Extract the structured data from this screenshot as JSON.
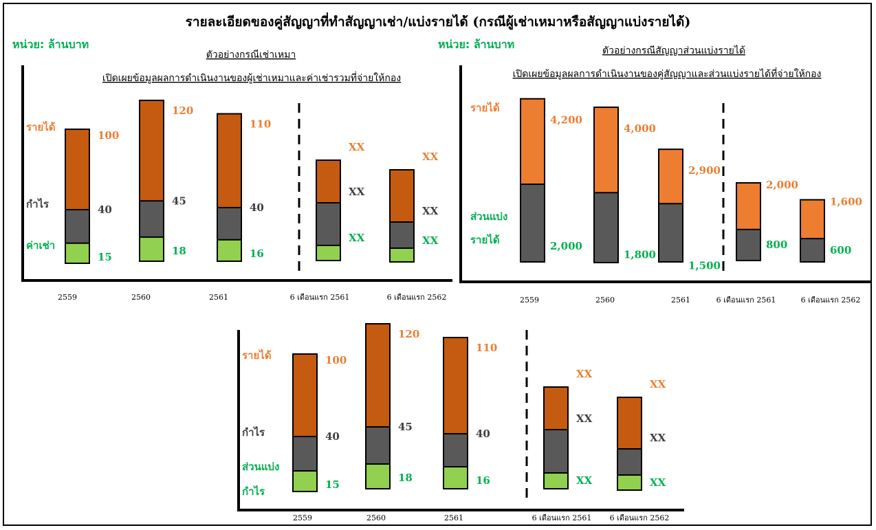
{
  "page": {
    "title": "รายละเอียดของคู่สัญญาที่ทำสัญญาเช่า/แบ่งรายได้ (กรณีผู้เช่าเหมาหรือสัญญาแบ่งรายได้)"
  },
  "colors": {
    "orange_light": "#ED7D31",
    "orange_dark": "#C55A11",
    "gray": "#595959",
    "green_bar": "#92D050",
    "green_text": "#00B050",
    "axis": "#000000"
  },
  "chart_data": [
    {
      "type": "bar",
      "subtype": "stacked-overlap",
      "unit_label": "หน่วย: ล้านบาท",
      "subtitle_1": "ตัวอย่างกรณีเช่าเหมา",
      "subtitle_2": "เปิดเผยข้อมูลผลการดำเนินงานของผู้เช่าเหมาและค่าเช่ารวมที่จ่ายให้กอง",
      "categories": [
        "2559",
        "2560",
        "2561",
        "6 เดือนแรก 2561",
        "6 เดือนแรก 2562"
      ],
      "divider_after_index": 2,
      "series": [
        {
          "name": "รายได้",
          "values": [
            100,
            120,
            110,
            null,
            null
          ],
          "labels": [
            "100",
            "120",
            "110",
            "XX",
            "XX"
          ]
        },
        {
          "name": "กำไร",
          "values": [
            40,
            45,
            40,
            null,
            null
          ],
          "labels": [
            "40",
            "45",
            "40",
            "XX",
            "XX"
          ]
        },
        {
          "name": "ค่าเช่า",
          "values": [
            15,
            18,
            16,
            null,
            null
          ],
          "labels": [
            "15",
            "18",
            "16",
            "XX",
            "XX"
          ]
        }
      ]
    },
    {
      "type": "bar",
      "subtype": "stacked-overlap",
      "unit_label": "หน่วย: ล้านบาท",
      "subtitle_1": "ตัวอย่างกรณีสัญญาส่วนแบ่งรายได้",
      "subtitle_2": "เปิดเผยข้อมูลผลการดำเนินงานของคู่สัญญาและส่วนแบ่งรายได้ที่จ่ายให้กอง",
      "categories": [
        "2559",
        "2560",
        "2561",
        "6 เดือนแรก 2561",
        "6 เดือนแรก 2562"
      ],
      "divider_after_index": 2,
      "series": [
        {
          "name": "รายได้",
          "values": [
            4200,
            4000,
            2900,
            2000,
            1600
          ],
          "labels": [
            "4,200",
            "4,000",
            "2,900",
            "2,000",
            "1,600"
          ]
        },
        {
          "name": "ส่วนแบ่ง รายได้",
          "values": [
            2000,
            1800,
            1500,
            800,
            600
          ],
          "labels": [
            "2,000",
            "1,800",
            "1,500",
            "800",
            "600"
          ]
        }
      ]
    },
    {
      "type": "bar",
      "subtype": "stacked-overlap",
      "categories": [
        "2559",
        "2560",
        "2561",
        "6 เดือนแรก 2561",
        "6 เดือนแรก 2562"
      ],
      "divider_after_index": 2,
      "series": [
        {
          "name": "รายได้",
          "values": [
            100,
            120,
            110,
            null,
            null
          ],
          "labels": [
            "100",
            "120",
            "110",
            "XX",
            "XX"
          ]
        },
        {
          "name": "กำไร",
          "values": [
            40,
            45,
            40,
            null,
            null
          ],
          "labels": [
            "40",
            "45",
            "40",
            "XX",
            "XX"
          ]
        },
        {
          "name": "ส่วนแบ่ง กำไร",
          "values": [
            15,
            18,
            16,
            null,
            null
          ],
          "labels": [
            "15",
            "18",
            "16",
            "XX",
            "XX"
          ]
        }
      ]
    }
  ]
}
